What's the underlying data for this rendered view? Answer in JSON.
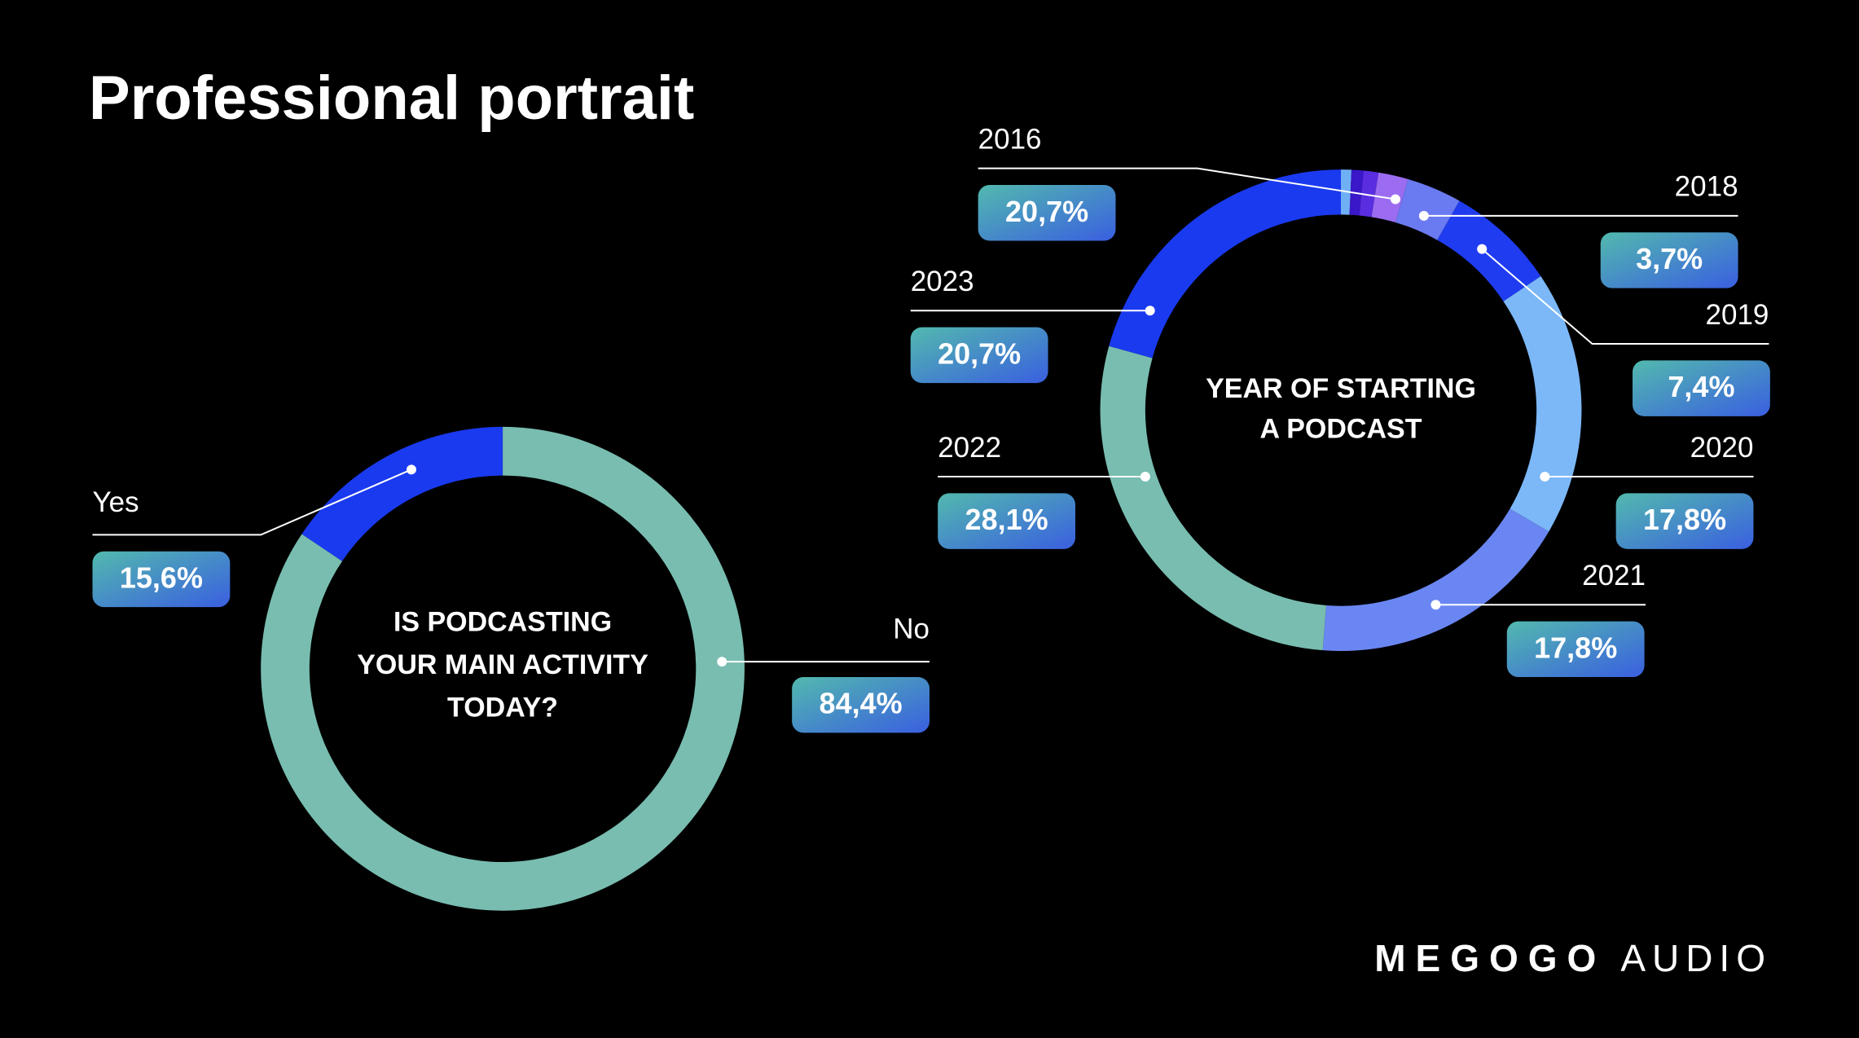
{
  "title": "Professional portrait",
  "chart_data": [
    {
      "type": "pie",
      "center_label": [
        "IS PODCASTING",
        "YOUR MAIN ACTIVITY",
        "TODAY?"
      ],
      "categories": [
        "No",
        "Yes"
      ],
      "values": [
        84.4,
        15.6
      ],
      "value_labels": [
        "84,4%",
        "15,6%"
      ],
      "colors": [
        "#78bdb0",
        "#1a3af0"
      ]
    },
    {
      "type": "pie",
      "center_label": [
        "YEAR OF STARTING",
        "A PODCAST"
      ],
      "categories": [
        null,
        null,
        null,
        "2016",
        "2018",
        "2019",
        "2020",
        "2021",
        "2022",
        "2023"
      ],
      "values": [
        0.7,
        0.8,
        1.0,
        2.0,
        3.7,
        7.4,
        17.8,
        17.8,
        28.1,
        20.7
      ],
      "value_labels": [
        null,
        null,
        null,
        null,
        "3,7%",
        "7,4%",
        "17,8%",
        "17,8%",
        "28,1%",
        "20,7%"
      ],
      "annotations": [
        "20,7%"
      ],
      "colors": [
        "#6fb0f5",
        "#3a17c8",
        "#5a2de0",
        "#9b6cf0",
        "#6a7af0",
        "#1f3cf0",
        "#7cb8f7",
        "#6a86f2",
        "#78bdb0",
        "#1a3af0"
      ]
    }
  ],
  "logo": [
    "MEGOGO",
    "AUDIO"
  ]
}
